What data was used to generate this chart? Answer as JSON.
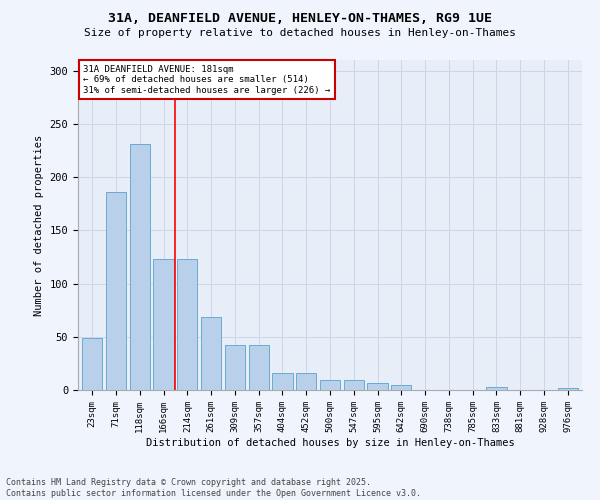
{
  "title": "31A, DEANFIELD AVENUE, HENLEY-ON-THAMES, RG9 1UE",
  "subtitle": "Size of property relative to detached houses in Henley-on-Thames",
  "xlabel": "Distribution of detached houses by size in Henley-on-Thames",
  "ylabel": "Number of detached properties",
  "categories": [
    "23sqm",
    "71sqm",
    "118sqm",
    "166sqm",
    "214sqm",
    "261sqm",
    "309sqm",
    "357sqm",
    "404sqm",
    "452sqm",
    "500sqm",
    "547sqm",
    "595sqm",
    "642sqm",
    "690sqm",
    "738sqm",
    "785sqm",
    "833sqm",
    "881sqm",
    "928sqm",
    "976sqm"
  ],
  "values": [
    49,
    186,
    231,
    123,
    123,
    69,
    42,
    42,
    16,
    16,
    9,
    9,
    7,
    5,
    0,
    0,
    0,
    3,
    0,
    0,
    2
  ],
  "bar_color": "#b8d0ea",
  "bar_edge_color": "#6aaad4",
  "grid_color": "#ccd6e8",
  "bg_color": "#e8eef8",
  "fig_bg_color": "#f0f4fc",
  "redline_x": 3.5,
  "annotation_text": "31A DEANFIELD AVENUE: 181sqm\n← 69% of detached houses are smaller (514)\n31% of semi-detached houses are larger (226) →",
  "annotation_box_color": "#ffffff",
  "annotation_box_edge": "#cc0000",
  "footer": "Contains HM Land Registry data © Crown copyright and database right 2025.\nContains public sector information licensed under the Open Government Licence v3.0.",
  "ylim": [
    0,
    310
  ],
  "yticks": [
    0,
    50,
    100,
    150,
    200,
    250,
    300
  ]
}
